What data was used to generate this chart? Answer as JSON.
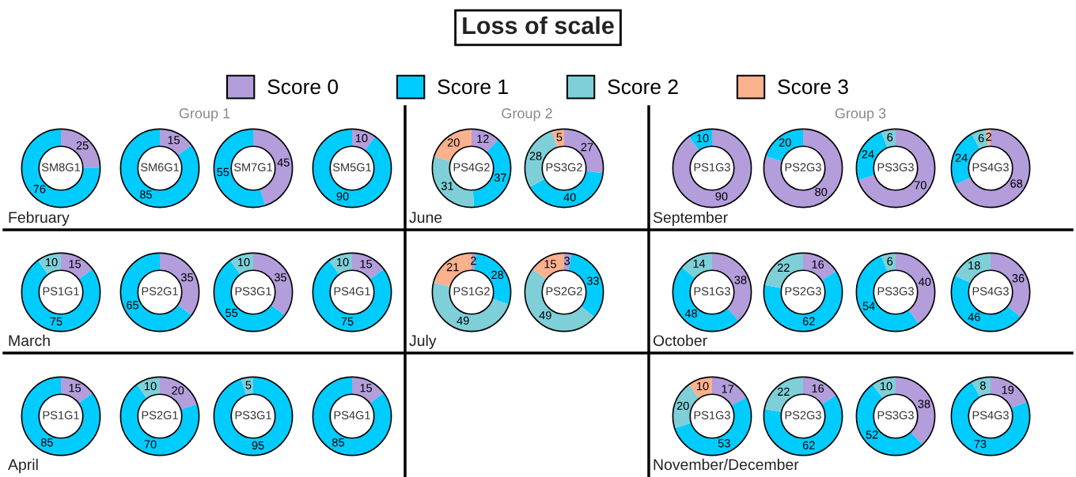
{
  "chart_data": [
    {
      "type": "other",
      "title": "Loss of scale"
    },
    {
      "type": "donut",
      "title": "SM8G1",
      "categories": [
        "Score 0",
        "Score 1",
        "Score 2",
        "Score 3"
      ],
      "values": [
        25,
        76,
        null,
        null
      ],
      "colors": [
        "#b39ddb",
        "#00ccff",
        "#7ecfd8",
        "#fbb08e"
      ],
      "data_labels": true,
      "legend": "top",
      "annotations": [
        "February"
      ]
    },
    {
      "type": "donut",
      "title": "SM6G1",
      "categories": [
        null,
        null,
        null,
        null
      ],
      "values": [
        15,
        85,
        null,
        null
      ],
      "colors": [
        "#b39ddb",
        "#00ccff",
        "#7ecfd8",
        "#fbb08e"
      ],
      "data_labels": true,
      "annotations": [
        null,
        "Group 1"
      ]
    },
    {
      "type": "donut",
      "title": "SM7G1",
      "categories": [
        null,
        null,
        null,
        null
      ],
      "values": [
        45,
        55,
        null,
        null
      ],
      "colors": [
        "#b39ddb",
        "#00ccff",
        "#7ecfd8",
        "#fbb08e"
      ],
      "data_labels": true
    },
    {
      "type": "donut",
      "title": "SM5G1",
      "categories": [
        null,
        null,
        null,
        null
      ],
      "values": [
        10,
        90,
        null,
        null
      ],
      "colors": [
        "#b39ddb",
        "#00ccff",
        "#7ecfd8",
        "#fbb08e"
      ],
      "data_labels": true
    },
    {
      "type": "donut",
      "title": "PS4G2",
      "categories": [
        null,
        null,
        null,
        null
      ],
      "values": [
        12,
        37,
        31,
        20
      ],
      "colors": [
        "#b39ddb",
        "#00ccff",
        "#7ecfd8",
        "#fbb08e"
      ],
      "data_labels": true,
      "annotations": [
        "June",
        "Group 2"
      ]
    },
    {
      "type": "donut",
      "title": "PS3G2",
      "categories": [
        null,
        null,
        null,
        null
      ],
      "values": [
        27,
        40,
        28,
        5
      ],
      "colors": [
        "#b39ddb",
        "#00ccff",
        "#7ecfd8",
        "#fbb08e"
      ],
      "data_labels": true
    },
    {
      "type": "donut",
      "title": "PS1G3",
      "categories": [
        null,
        null,
        null,
        null
      ],
      "values": [
        90,
        10,
        null,
        null
      ],
      "colors": [
        "#b39ddb",
        "#00ccff",
        "#7ecfd8",
        "#fbb08e"
      ],
      "data_labels": true,
      "annotations": [
        "September"
      ]
    },
    {
      "type": "donut",
      "title": "PS2G3",
      "categories": [
        null,
        null,
        null,
        null
      ],
      "values": [
        80,
        20,
        null,
        null
      ],
      "colors": [
        "#b39ddb",
        "#00ccff",
        "#7ecfd8",
        "#fbb08e"
      ],
      "data_labels": true
    },
    {
      "type": "donut",
      "title": "PS3G3",
      "categories": [
        null,
        null,
        null,
        null
      ],
      "values": [
        70,
        24,
        6,
        null
      ],
      "colors": [
        "#b39ddb",
        "#00ccff",
        "#7ecfd8",
        "#fbb08e"
      ],
      "data_labels": true,
      "annotations": [
        null,
        "Group 3"
      ]
    },
    {
      "type": "donut",
      "title": "PS4G3",
      "categories": [
        null,
        null,
        null,
        null
      ],
      "values": [
        68,
        24,
        6,
        2
      ],
      "colors": [
        "#b39ddb",
        "#00ccff",
        "#7ecfd8",
        "#fbb08e"
      ],
      "data_labels": true
    },
    {
      "type": "donut",
      "title": "PS1G1",
      "categories": [
        null,
        null,
        null,
        null
      ],
      "values": [
        15,
        75,
        10,
        null
      ],
      "colors": [
        "#b39ddb",
        "#00ccff",
        "#7ecfd8",
        "#fbb08e"
      ],
      "data_labels": true,
      "annotations": [
        "March"
      ]
    },
    {
      "type": "donut",
      "title": "PS2G1",
      "categories": [
        null,
        null,
        null,
        null
      ],
      "values": [
        35,
        65,
        null,
        null
      ],
      "colors": [
        "#b39ddb",
        "#00ccff",
        "#7ecfd8",
        "#fbb08e"
      ],
      "data_labels": true
    },
    {
      "type": "donut",
      "title": "PS3G1",
      "categories": [
        null,
        null,
        null,
        null
      ],
      "values": [
        35,
        55,
        10,
        null
      ],
      "colors": [
        "#b39ddb",
        "#00ccff",
        "#7ecfd8",
        "#fbb08e"
      ],
      "data_labels": true
    },
    {
      "type": "donut",
      "title": "PS4G1",
      "categories": [
        null,
        null,
        null,
        null
      ],
      "values": [
        15,
        75,
        10,
        null
      ],
      "colors": [
        "#b39ddb",
        "#00ccff",
        "#7ecfd8",
        "#fbb08e"
      ],
      "data_labels": true
    },
    {
      "type": "donut",
      "title": "PS1G2",
      "categories": [
        null,
        null,
        null,
        null
      ],
      "values": [
        2,
        28,
        49,
        21
      ],
      "colors": [
        "#b39ddb",
        "#00ccff",
        "#7ecfd8",
        "#fbb08e"
      ],
      "data_labels": true,
      "annotations": [
        "July"
      ]
    },
    {
      "type": "donut",
      "title": "PS2G2",
      "categories": [
        null,
        null,
        null,
        null
      ],
      "values": [
        3,
        33,
        49,
        15
      ],
      "colors": [
        "#b39ddb",
        "#00ccff",
        "#7ecfd8",
        "#fbb08e"
      ],
      "data_labels": true
    },
    {
      "type": "donut",
      "title": "PS1G3",
      "categories": [
        null,
        null,
        null,
        null
      ],
      "values": [
        38,
        48,
        14,
        null
      ],
      "colors": [
        "#b39ddb",
        "#00ccff",
        "#7ecfd8",
        "#fbb08e"
      ],
      "data_labels": true,
      "annotations": [
        "October"
      ]
    },
    {
      "type": "donut",
      "title": "PS2G3",
      "categories": [
        null,
        null,
        null,
        null
      ],
      "values": [
        16,
        62,
        22,
        null
      ],
      "colors": [
        "#b39ddb",
        "#00ccff",
        "#7ecfd8",
        "#fbb08e"
      ],
      "data_labels": true
    },
    {
      "type": "donut",
      "title": "PS3G3",
      "categories": [
        null,
        null,
        null,
        null
      ],
      "values": [
        40,
        54,
        6,
        null
      ],
      "colors": [
        "#b39ddb",
        "#00ccff",
        "#7ecfd8",
        "#fbb08e"
      ],
      "data_labels": true
    },
    {
      "type": "donut",
      "title": "PS4G3",
      "categories": [
        null,
        null,
        null,
        null
      ],
      "values": [
        36,
        46,
        18,
        null
      ],
      "colors": [
        "#b39ddb",
        "#00ccff",
        "#7ecfd8",
        "#fbb08e"
      ],
      "data_labels": true
    },
    {
      "type": "donut",
      "title": "PS1G1",
      "categories": [
        null,
        null,
        null,
        null
      ],
      "values": [
        15,
        85,
        null,
        null
      ],
      "colors": [
        "#b39ddb",
        "#00ccff",
        "#7ecfd8",
        "#fbb08e"
      ],
      "data_labels": true,
      "annotations": [
        "April"
      ]
    },
    {
      "type": "donut",
      "title": "PS2G1",
      "categories": [
        null,
        null,
        null,
        null
      ],
      "values": [
        20,
        70,
        10,
        null
      ],
      "colors": [
        "#b39ddb",
        "#00ccff",
        "#7ecfd8",
        "#fbb08e"
      ],
      "data_labels": true
    },
    {
      "type": "donut",
      "title": "PS3G1",
      "categories": [
        null,
        null,
        null,
        null
      ],
      "values": [
        null,
        95,
        5,
        null
      ],
      "colors": [
        "#b39ddb",
        "#00ccff",
        "#7ecfd8",
        "#fbb08e"
      ],
      "data_labels": true
    },
    {
      "type": "donut",
      "title": "PS4G1",
      "categories": [
        null,
        null,
        null,
        null
      ],
      "values": [
        15,
        85,
        null,
        null
      ],
      "colors": [
        "#b39ddb",
        "#00ccff",
        "#7ecfd8",
        "#fbb08e"
      ],
      "data_labels": true
    },
    {
      "type": "donut",
      "title": "PS1G3",
      "categories": [
        null,
        null,
        null,
        null
      ],
      "values": [
        17,
        53,
        20,
        10
      ],
      "colors": [
        "#b39ddb",
        "#00ccff",
        "#7ecfd8",
        "#fbb08e"
      ],
      "data_labels": true,
      "annotations": [
        "November/December"
      ]
    },
    {
      "type": "donut",
      "title": "PS2G3",
      "categories": [
        null,
        null,
        null,
        null
      ],
      "values": [
        16,
        62,
        22,
        null
      ],
      "colors": [
        "#b39ddb",
        "#00ccff",
        "#7ecfd8",
        "#fbb08e"
      ],
      "data_labels": true
    },
    {
      "type": "donut",
      "title": "PS3G3",
      "categories": [
        null,
        null,
        null,
        null
      ],
      "values": [
        38,
        52,
        10,
        null
      ],
      "colors": [
        "#b39ddb",
        "#00ccff",
        "#7ecfd8",
        "#fbb08e"
      ],
      "data_labels": true
    },
    {
      "type": "donut",
      "title": "PS4G3",
      "categories": [
        null,
        null,
        null,
        null
      ],
      "values": [
        19,
        73,
        8,
        null
      ],
      "colors": [
        "#b39ddb",
        "#00ccff",
        "#7ecfd8",
        "#fbb08e"
      ],
      "data_labels": true
    }
  ]
}
